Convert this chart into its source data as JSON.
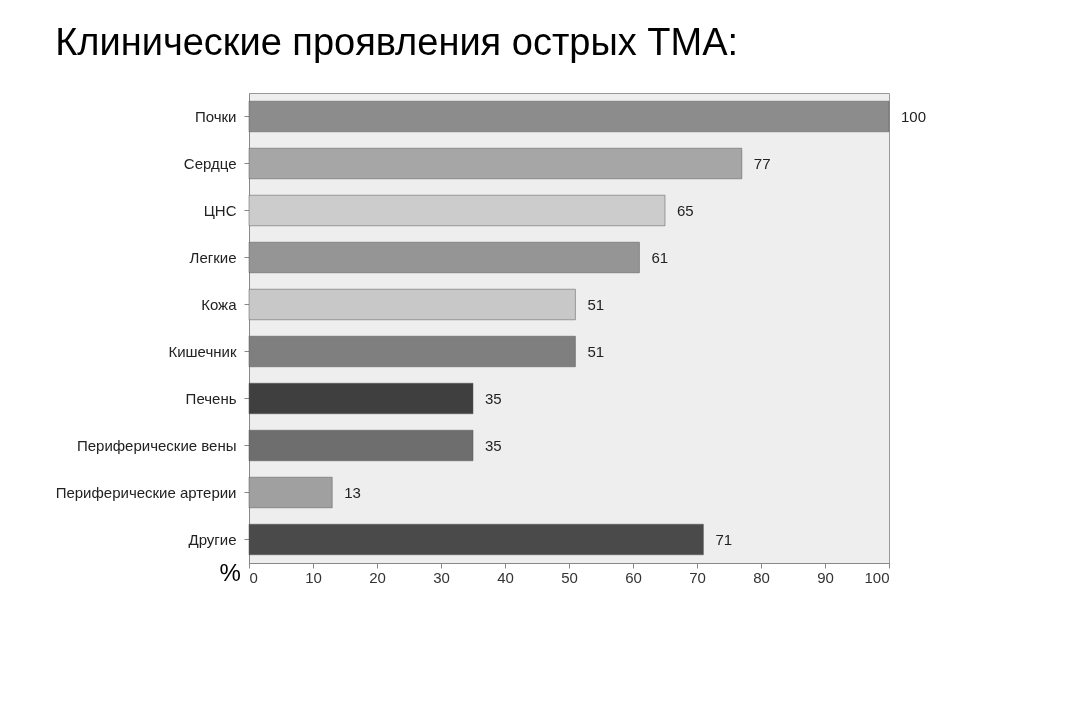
{
  "chart_data": {
    "type": "bar",
    "orientation": "horizontal",
    "title": "Клинические проявления острых ТМА:",
    "xlabel": "%",
    "categories": [
      "Почки",
      "Сердце",
      "ЦНС",
      "Легкие",
      "Кожа",
      "Кишечник",
      "Печень",
      "Периферические вены",
      "Периферические артерии",
      "Другие"
    ],
    "values": [
      100,
      77,
      65,
      61,
      51,
      51,
      35,
      35,
      13,
      71
    ],
    "colors": [
      "#8c8c8c",
      "#a6a6a6",
      "#cccccc",
      "#959595",
      "#c8c8c8",
      "#7f7f7f",
      "#3f3f3f",
      "#6e6e6e",
      "#a0a0a0",
      "#4a4a4a"
    ],
    "xlim": [
      0,
      100
    ],
    "xticks": [
      0,
      10,
      20,
      30,
      40,
      50,
      60,
      70,
      80,
      90,
      100
    ],
    "data_labels": true,
    "grid": false
  }
}
